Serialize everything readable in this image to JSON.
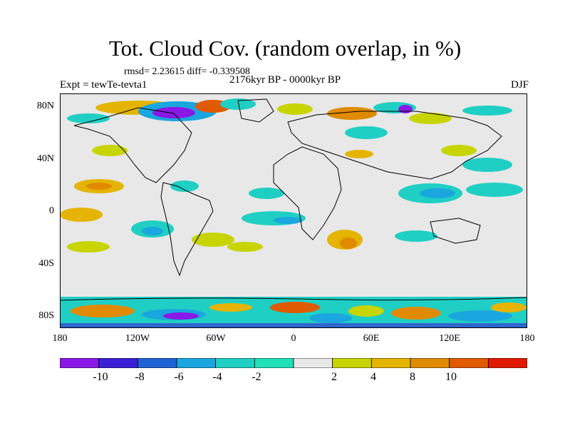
{
  "title": "Tot. Cloud Cov. (random overlap, in %)",
  "stats": "rmsd= 2.23615  diff= -0.339508",
  "experiment": "Expt = tewTe-tevta1",
  "period": "2176kyr BP - 0000kyr BP",
  "season": "DJF",
  "lat_labels": [
    "80N",
    "40N",
    "0",
    "40S",
    "80S"
  ],
  "lon_labels": [
    "180",
    "120W",
    "60W",
    "0",
    "60E",
    "120E",
    "180"
  ],
  "colorbar": {
    "labels": [
      "-10",
      "-8",
      "-6",
      "-4",
      "-2",
      "2",
      "4",
      "8",
      "10"
    ],
    "colors": [
      "#8a18e6",
      "#3b1fd6",
      "#1e62d6",
      "#1aa6de",
      "#20cfc4",
      "#20e0b8",
      "#e8e8e8",
      "#c8d400",
      "#e4b400",
      "#e08a00",
      "#e05a00",
      "#e01a00"
    ]
  },
  "map": {
    "background": "#e8e8e8",
    "coastline_color": "#000000"
  }
}
